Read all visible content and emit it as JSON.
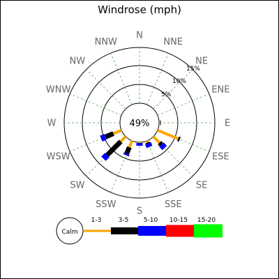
{
  "chart_data": {
    "type": "windrose",
    "title": "Windrose (mph)",
    "directions": [
      "N",
      "NNE",
      "NE",
      "ENE",
      "E",
      "ESE",
      "SE",
      "SSE",
      "S",
      "SSW",
      "SW",
      "WSW",
      "W",
      "WNW",
      "NW",
      "NNW"
    ],
    "ring_labels": [
      "5%",
      "10%",
      "15%"
    ],
    "rmax": 16,
    "calm": {
      "label": "49%",
      "value": 49
    },
    "bins": [
      {
        "label": "1-3",
        "color": "#FFA500"
      },
      {
        "label": "3-5",
        "color": "#000000"
      },
      {
        "label": "5-10",
        "color": "#0000FF"
      },
      {
        "label": "10-15",
        "color": "#FF0000"
      },
      {
        "label": "15-20",
        "color": "#00FF00"
      }
    ],
    "series": [
      {
        "direction": "N",
        "values": [
          0,
          0,
          0,
          0,
          0
        ]
      },
      {
        "direction": "NNE",
        "values": [
          0,
          0,
          0,
          0,
          0
        ]
      },
      {
        "direction": "NE",
        "values": [
          0,
          0,
          0,
          0,
          0
        ]
      },
      {
        "direction": "ENE",
        "values": [
          0,
          0,
          0,
          0,
          0
        ]
      },
      {
        "direction": "E",
        "values": [
          0.3,
          0.2,
          0,
          0,
          0
        ]
      },
      {
        "direction": "ESE",
        "values": [
          6.4,
          0.5,
          0,
          0,
          0
        ]
      },
      {
        "direction": "SE",
        "values": [
          2.5,
          0.8,
          1.3,
          0,
          0
        ]
      },
      {
        "direction": "SSE",
        "values": [
          0.5,
          0.3,
          1.1,
          0,
          0
        ]
      },
      {
        "direction": "S",
        "values": [
          0.2,
          0,
          0.8,
          0,
          0
        ]
      },
      {
        "direction": "SSW",
        "values": [
          2.0,
          2.0,
          0.5,
          0,
          0
        ]
      },
      {
        "direction": "SW",
        "values": [
          2.0,
          5.5,
          1.5,
          0,
          0
        ]
      },
      {
        "direction": "WSW",
        "values": [
          2.5,
          2.5,
          1.3,
          0,
          0
        ]
      },
      {
        "direction": "W",
        "values": [
          0,
          0,
          0,
          0,
          0
        ]
      },
      {
        "direction": "WNW",
        "values": [
          0,
          0,
          0,
          0,
          0
        ]
      },
      {
        "direction": "NW",
        "values": [
          0,
          0,
          0,
          0,
          0
        ]
      },
      {
        "direction": "NNW",
        "values": [
          0,
          0,
          0,
          0,
          0
        ]
      }
    ],
    "legend": {
      "calm_label": "Calm"
    }
  }
}
